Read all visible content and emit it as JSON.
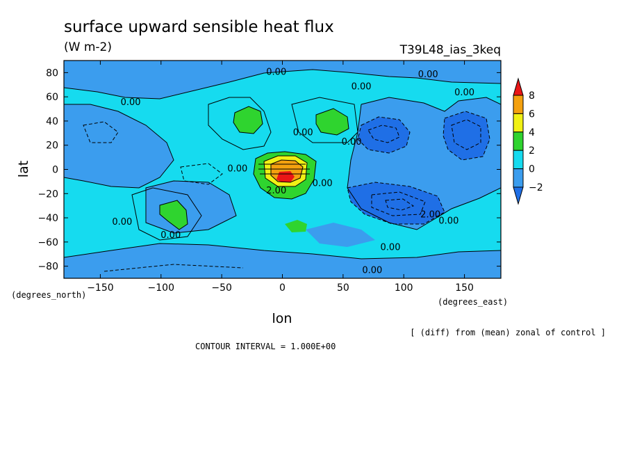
{
  "chart_data": {
    "type": "heatmap",
    "title": "surface upward sensible heat flux",
    "units": "(W m-2)",
    "experiment": "T39L48_ias_3keq",
    "xlabel": "lon",
    "ylabel": "lat",
    "x_unit_label": "(degrees_east)",
    "y_unit_label": "(degrees_north)",
    "xlim": [
      -180,
      180
    ],
    "ylim": [
      -90,
      90
    ],
    "x_ticks": [
      -150,
      -100,
      -50,
      0,
      50,
      100,
      150
    ],
    "y_ticks": [
      -80,
      -60,
      -40,
      -20,
      0,
      20,
      40,
      60,
      80
    ],
    "colorbar": {
      "levels": [
        -2,
        0,
        2,
        4,
        6,
        8
      ],
      "bins": [
        {
          "range": "<-2",
          "color": "#1f6fe6"
        },
        {
          "range": "-2 to 0",
          "color": "#3b9dee"
        },
        {
          "range": "0 to 2",
          "color": "#16dbef"
        },
        {
          "range": "2 to 4",
          "color": "#2fd42f"
        },
        {
          "range": "4 to 6",
          "color": "#f1f115"
        },
        {
          "range": "6 to 8",
          "color": "#f4a10f"
        },
        {
          "range": ">8",
          "color": "#ea1616"
        }
      ]
    },
    "contour_labels": [
      {
        "text": "0.00",
        "lon": -5,
        "lat": 80
      },
      {
        "text": "0.00",
        "lon": 120,
        "lat": 78
      },
      {
        "text": "0.00",
        "lon": 65,
        "lat": 68
      },
      {
        "text": "0.00",
        "lon": 150,
        "lat": 63
      },
      {
        "text": "0.00",
        "lon": -125,
        "lat": 55
      },
      {
        "text": "0.00",
        "lon": 17,
        "lat": 30
      },
      {
        "text": "0.00",
        "lon": 57,
        "lat": 22
      },
      {
        "text": "0.00",
        "lon": -37,
        "lat": 0
      },
      {
        "text": "2.00",
        "lon": -5,
        "lat": -18
      },
      {
        "text": "0.00",
        "lon": 33,
        "lat": -12
      },
      {
        "text": "2.00",
        "lon": 122,
        "lat": -38
      },
      {
        "text": "0.00",
        "lon": 137,
        "lat": -43
      },
      {
        "text": "0.00",
        "lon": -132,
        "lat": -44
      },
      {
        "text": "0.00",
        "lon": -92,
        "lat": -55
      },
      {
        "text": "0.00",
        "lon": 89,
        "lat": -65
      },
      {
        "text": "0.00",
        "lon": 74,
        "lat": -84
      }
    ],
    "features": [
      {
        "desc": "positive maximum",
        "lon": 0,
        "lat": 0,
        "peak": 8
      },
      {
        "desc": "negative minimum",
        "lon": 85,
        "lat": 30,
        "peak": -3
      },
      {
        "desc": "negative minimum",
        "lon": 150,
        "lat": 22,
        "peak": -3
      },
      {
        "desc": "negative minimum",
        "lon": 95,
        "lat": -32,
        "peak": -3
      },
      {
        "desc": "positive region",
        "lon": -30,
        "lat": 38,
        "peak": 3
      },
      {
        "desc": "positive region",
        "lon": 40,
        "lat": 38,
        "peak": 3
      },
      {
        "desc": "positive region",
        "lon": -87,
        "lat": -38,
        "peak": 3
      },
      {
        "desc": "positive region",
        "lon": 18,
        "lat": -47,
        "peak": 2.5
      }
    ]
  },
  "contour_interval_text": "CONTOUR INTERVAL = 1.000E+00",
  "note_text": "[ (diff) from (mean) zonal of control ]"
}
